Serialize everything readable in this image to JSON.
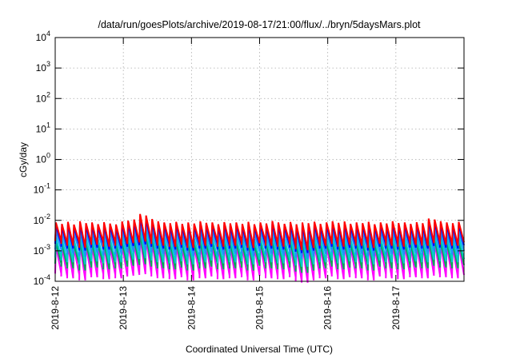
{
  "chart_data": {
    "type": "line",
    "title": "/data/run/goesPlots/archive/2019-08-17/21:00/flux/../bryn/5daysMars.plot",
    "xlabel": "Coordinated Universal Time (UTC)",
    "ylabel": "cGy/day",
    "y_scale": "log",
    "ylim": [
      0.0001,
      10000
    ],
    "xlim": [
      0,
      6
    ],
    "y_ticks": [
      {
        "value": 0.0001,
        "base": "10",
        "exp": "-4"
      },
      {
        "value": 0.001,
        "base": "10",
        "exp": "-3"
      },
      {
        "value": 0.01,
        "base": "10",
        "exp": "-2"
      },
      {
        "value": 0.1,
        "base": "10",
        "exp": "-1"
      },
      {
        "value": 1,
        "base": "10",
        "exp": "0"
      },
      {
        "value": 10,
        "base": "10",
        "exp": "1"
      },
      {
        "value": 100,
        "base": "10",
        "exp": "2"
      },
      {
        "value": 1000,
        "base": "10",
        "exp": "3"
      },
      {
        "value": 10000,
        "base": "10",
        "exp": "4"
      }
    ],
    "x_ticks": [
      {
        "value": 0,
        "label": "2019-8-12"
      },
      {
        "value": 1,
        "label": "2019-8-13"
      },
      {
        "value": 2,
        "label": "2019-8-14"
      },
      {
        "value": 3,
        "label": "2019-8-15"
      },
      {
        "value": 4,
        "label": "2019-8-16"
      },
      {
        "value": 5,
        "label": "2019-8-17"
      }
    ],
    "grid": true,
    "legend": "none",
    "colors": [
      "#ff0000",
      "#0000ff",
      "#1e90ff",
      "#00cccc",
      "#00aa55",
      "#ff00ff"
    ],
    "series_levels": [
      {
        "peak": 0.0085,
        "trough": 0.0021
      },
      {
        "peak": 0.0068,
        "trough": 0.0017
      },
      {
        "peak": 0.0045,
        "trough": 0.0011
      },
      {
        "peak": 0.0028,
        "trough": 0.0006
      },
      {
        "peak": 0.0019,
        "trough": 0.00038
      },
      {
        "peak": 0.0015,
        "trough": 0.00018
      }
    ],
    "cycles": 68,
    "cycle_peak_factors": [
      1.0,
      0.9,
      1.05,
      0.85,
      1.1,
      0.95,
      1.0,
      0.88,
      1.02,
      0.92,
      0.86,
      1.08,
      1.15,
      1.25,
      1.9,
      1.7,
      1.3,
      1.1,
      1.0,
      0.95,
      1.05,
      0.9,
      1.0,
      0.92,
      1.1,
      0.97,
      1.0,
      0.88,
      1.03,
      0.94,
      1.0,
      0.9,
      1.05,
      0.87,
      1.0,
      0.93,
      1.12,
      1.0,
      0.9,
      1.04,
      0.88,
      1.0,
      0.95,
      1.06,
      0.9,
      1.0,
      1.1,
      0.97,
      1.08,
      0.9,
      1.0,
      0.95,
      1.05,
      0.88,
      1.0,
      0.93,
      1.1,
      0.96,
      1.0,
      0.9,
      1.02,
      0.95,
      1.35,
      1.25,
      1.1,
      1.0,
      0.95,
      1.05
    ],
    "cycle_trough_factors": [
      1.0,
      0.8,
      0.7,
      0.9,
      0.6,
      0.85,
      0.75,
      0.95,
      0.65,
      0.9,
      0.7,
      0.8,
      0.85,
      0.9,
      1.0,
      0.95,
      0.8,
      0.7,
      0.9,
      0.65,
      0.85,
      0.75,
      0.6,
      0.9,
      0.7,
      0.8,
      0.95,
      0.65,
      0.85,
      0.7,
      0.9,
      0.75,
      0.6,
      0.85,
      0.95,
      0.7,
      0.8,
      0.65,
      0.9,
      0.75,
      0.55,
      0.5,
      0.6,
      0.85,
      0.7,
      0.9,
      0.8,
      0.65,
      0.75,
      0.9,
      0.7,
      0.85,
      0.6,
      0.8,
      0.95,
      0.7,
      0.85,
      0.65,
      0.9,
      0.75,
      0.8,
      0.7,
      0.85,
      0.9,
      0.75,
      0.8,
      0.7,
      0.9
    ]
  }
}
